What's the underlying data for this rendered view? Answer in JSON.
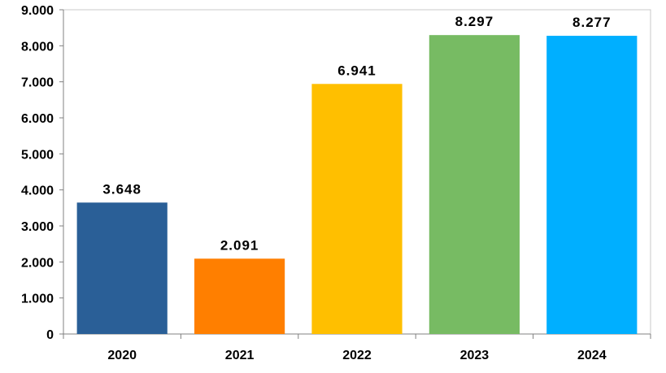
{
  "chart_data": {
    "type": "bar",
    "title": "",
    "xlabel": "",
    "ylabel": "",
    "categories": [
      "2020",
      "2021",
      "2022",
      "2023",
      "2024"
    ],
    "values": [
      3648,
      2091,
      6941,
      8297,
      8277
    ],
    "data_labels": [
      "3.648",
      "2.091",
      "6.941",
      "8.297",
      "8.277"
    ],
    "colors": [
      "#2a5f97",
      "#ff7f00",
      "#ffbf00",
      "#77bb63",
      "#00afff"
    ],
    "ylim": [
      0,
      9000
    ],
    "yticks": [
      0,
      1000,
      2000,
      3000,
      4000,
      5000,
      6000,
      7000,
      8000,
      9000
    ],
    "ytick_labels": [
      "0",
      "1.000",
      "2.000",
      "3.000",
      "4.000",
      "5.000",
      "6.000",
      "7.000",
      "8.000",
      "9.000"
    ],
    "grid": false,
    "legend": "none"
  }
}
